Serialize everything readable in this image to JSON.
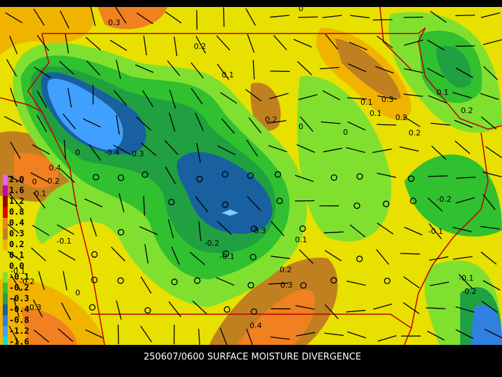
{
  "caption": "250607/0600 SURFACE MOISTURE DIVERGENCE",
  "legend": {
    "labels": [
      "2.0",
      "1.6",
      "1.2",
      "0.8",
      "0.4",
      "0.3",
      "0.2",
      "0.1",
      "0.0",
      "-0.1",
      "-0.2",
      "-0.3",
      "-0.4",
      "-0.8",
      "-1.2",
      "-1.6"
    ]
  },
  "contour_labels": [
    "0.3",
    "0",
    "0.2",
    "0.1",
    "0.2",
    "0",
    "0.2",
    "0.1",
    "0.3",
    "0.1",
    "0.2",
    "-0.2",
    "-0.1",
    "0",
    "-0.4",
    "-0.3",
    "0",
    "0.4",
    "0.2",
    "0.1",
    "-0.1",
    "-0.3",
    "-0.2",
    "-0.1",
    "-0.2",
    "-0.1",
    "0.1",
    "0.2",
    "0.3",
    "0.4",
    "0",
    "-0.1",
    "-0.2",
    "-0.3",
    "0",
    "0.1",
    "0.2"
  ]
}
